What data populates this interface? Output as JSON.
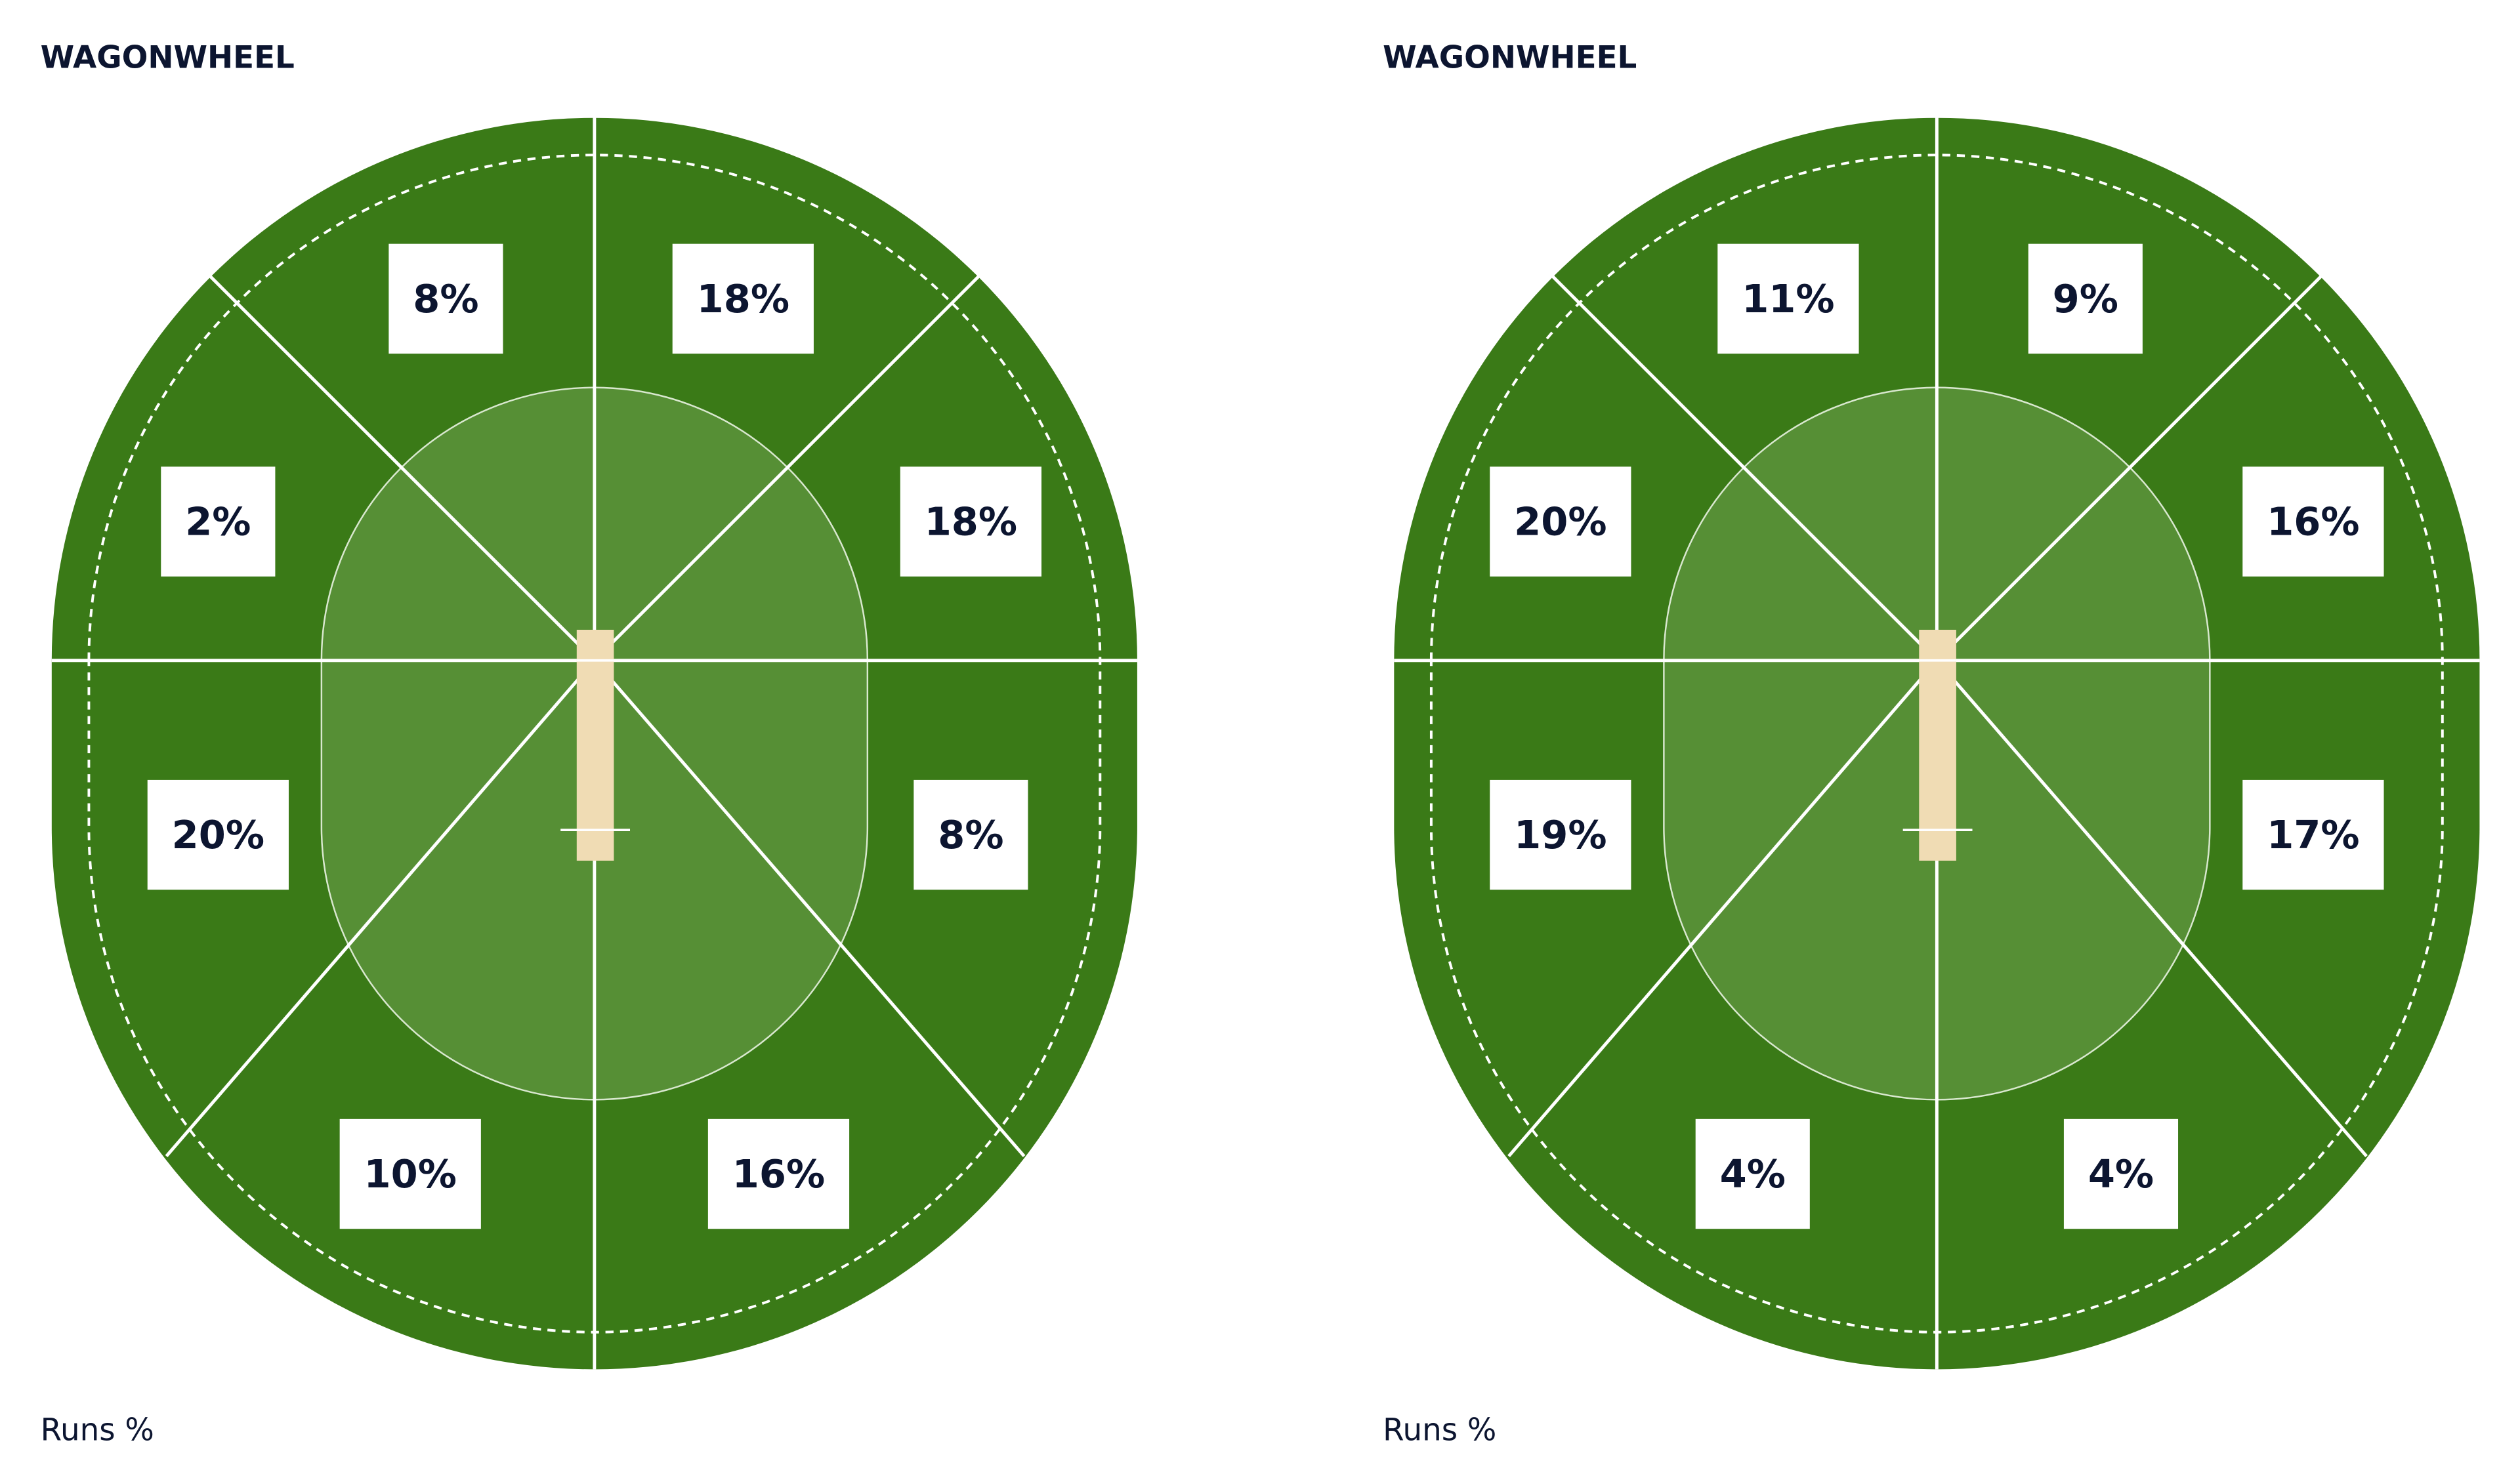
{
  "panels": [
    {
      "title": "WAGONWHEEL",
      "sectors": [
        "8%",
        "18%",
        "18%",
        "8%",
        "16%",
        "10%",
        "20%",
        "2%"
      ],
      "footer": "Runs %"
    },
    {
      "title": "WAGONWHEEL",
      "sectors": [
        "11%",
        "9%",
        "16%",
        "17%",
        "4%",
        "4%",
        "19%",
        "20%"
      ],
      "footer": "Runs %"
    }
  ]
}
